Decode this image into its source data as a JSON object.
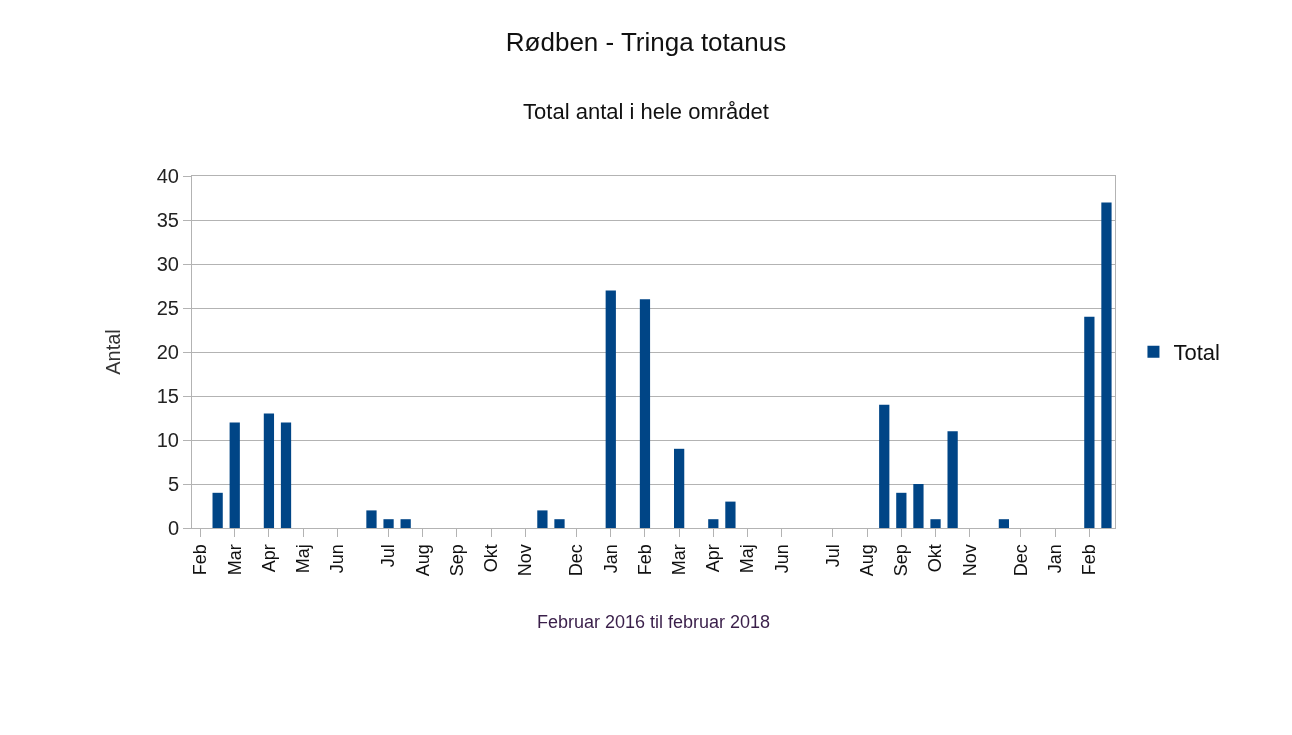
{
  "chart_data": {
    "type": "bar",
    "title": "Rødben - Tringa totanus",
    "subtitle": "Total antal i hele området",
    "xlabel": "Februar 2016 til februar 2018",
    "ylabel": "Antal",
    "categories": [
      "Feb",
      null,
      "Mar",
      null,
      "Apr",
      null,
      "Maj",
      null,
      "Jun",
      null,
      null,
      "Jul",
      null,
      "Aug",
      null,
      "Sep",
      null,
      "Okt",
      null,
      "Nov",
      null,
      null,
      "Dec",
      null,
      "Jan",
      null,
      "Feb",
      null,
      "Mar",
      null,
      "Apr",
      null,
      "Maj",
      null,
      "Jun",
      null,
      null,
      "Jul",
      null,
      "Aug",
      null,
      "Sep",
      null,
      "Okt",
      null,
      "Nov",
      null,
      null,
      "Dec",
      null,
      "Jan",
      null,
      "Feb",
      null
    ],
    "series": [
      {
        "name": "Total",
        "color": "#004586",
        "values": [
          null,
          4,
          12,
          null,
          13,
          12,
          null,
          null,
          null,
          null,
          2,
          1,
          1,
          null,
          null,
          null,
          null,
          null,
          null,
          null,
          2,
          1,
          null,
          null,
          27,
          null,
          26,
          null,
          9,
          null,
          1,
          3,
          null,
          null,
          null,
          null,
          null,
          null,
          null,
          null,
          14,
          4,
          5,
          1,
          11,
          null,
          null,
          1,
          null,
          null,
          null,
          null,
          24,
          37
        ]
      }
    ],
    "ylim": [
      0,
      40
    ],
    "yticks": [
      0,
      5,
      10,
      15,
      20,
      25,
      30,
      35,
      40
    ],
    "grid": "y",
    "legend": "right"
  }
}
